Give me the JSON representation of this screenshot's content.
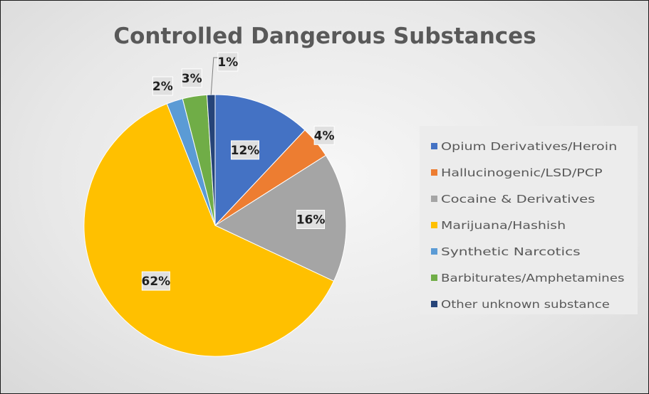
{
  "chart_data": {
    "type": "pie",
    "title": "Controlled Dangerous Substances",
    "categories": [
      "Opium Derivatives/Heroin",
      "Hallucinogenic/LSD/PCP",
      "Cocaine & Derivatives",
      "Marijuana/Hashish",
      "Synthetic Narcotics",
      "Barbiturates/Amphetamines",
      "Other unknown substance"
    ],
    "values": [
      12,
      4,
      16,
      62,
      2,
      3,
      1
    ],
    "data_labels": [
      "12%",
      "4%",
      "16%",
      "62%",
      "2%",
      "3%",
      "1%"
    ],
    "colors": [
      "#4472c4",
      "#ed7d31",
      "#a5a5a5",
      "#ffc000",
      "#5b9bd5",
      "#70ad47",
      "#264478"
    ],
    "legend_position": "right"
  }
}
